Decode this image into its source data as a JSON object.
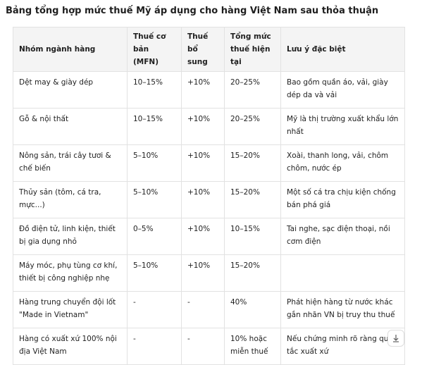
{
  "header": {
    "title": "Bảng tổng hợp mức thuế Mỹ áp dụng cho hàng Việt Nam sau thỏa thuận"
  },
  "table": {
    "headers": [
      "Nhóm ngành hàng",
      "Thuế cơ bản (MFN)",
      "Thuế bổ sung",
      "Tổng mức thuế hiện tại",
      "Lưu ý đặc biệt"
    ],
    "rows": [
      [
        "Dệt may & giày dép",
        "10–15%",
        "+10%",
        "20–25%",
        "Bao gồm quần áo, vải, giày dép da và vải"
      ],
      [
        "Gỗ & nội thất",
        "10–15%",
        "+10%",
        "20–25%",
        "Mỹ là thị trường xuất khẩu lớn nhất"
      ],
      [
        "Nông sản, trái cây tươi & chế biến",
        "5–10%",
        "+10%",
        "15–20%",
        "Xoài, thanh long, vải, chôm chôm, nước ép"
      ],
      [
        "Thủy sản (tôm, cá tra, mực...)",
        "5–10%",
        "+10%",
        "15–20%",
        "Một số cá tra chịu kiện chống bán phá giá"
      ],
      [
        "Đồ điện tử, linh kiện, thiết bị gia dụng nhỏ",
        "0–5%",
        "+10%",
        "10–15%",
        "Tai nghe, sạc điện thoại, nồi cơm điện"
      ],
      [
        "Máy móc, phụ tùng cơ khí, thiết bị công nghiệp nhẹ",
        "5–10%",
        "+10%",
        "15–20%",
        ""
      ],
      [
        "Hàng trung chuyển đội lốt \"Made in Vietnam\"",
        "-",
        "-",
        "40%",
        "Phát hiện hàng từ nước khác gắn nhãn VN bị truy thu thuế"
      ],
      [
        "Hàng có xuất xứ 100% nội địa Việt Nam",
        "-",
        "-",
        "10% hoặc miễn thuế",
        "Nếu chứng minh rõ ràng quy tắc xuất xứ"
      ]
    ]
  }
}
